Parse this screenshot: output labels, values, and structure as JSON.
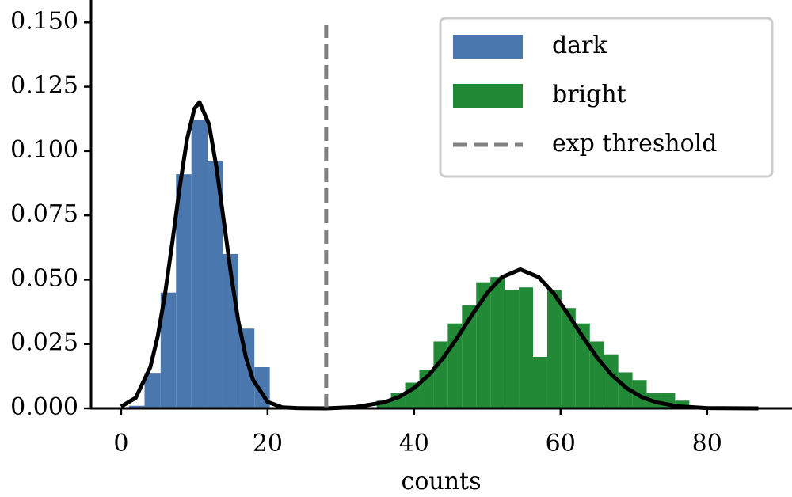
{
  "chart_data": {
    "type": "histogram",
    "xlabel": "counts",
    "xlim": [
      -4.1,
      91.6
    ],
    "ylim": [
      0,
      0.1587
    ],
    "xticks": [
      0,
      20,
      40,
      60,
      80
    ],
    "yticks": [
      {
        "value": 0,
        "label": "0.000"
      },
      {
        "value": 0.025,
        "label": "0.025"
      },
      {
        "value": 0.05,
        "label": "0.050"
      },
      {
        "value": 0.075,
        "label": "0.075"
      },
      {
        "value": 0.1,
        "label": "0.100"
      },
      {
        "value": 0.125,
        "label": "0.125"
      },
      {
        "value": 0.15,
        "label": "0.150"
      }
    ],
    "legend": "upper right",
    "series": [
      {
        "name": "dark",
        "color": "#4a78ae",
        "bins": [
          1.1,
          3.2,
          5.4,
          7.5,
          9.6,
          11.8,
          13.9,
          16.0,
          18.2,
          20.3
        ],
        "values": [
          0.001,
          0.0138,
          0.045,
          0.091,
          0.112,
          0.096,
          0.06,
          0.031,
          0.016
        ]
      },
      {
        "name": "bright",
        "color": "#228a37",
        "bins": [
          34.9,
          36.84,
          38.78,
          40.72,
          42.66,
          44.6,
          46.54,
          48.48,
          50.42,
          52.36,
          54.3,
          56.24,
          58.18,
          60.12,
          62.06,
          64.0,
          65.94,
          67.88,
          69.82,
          71.76,
          73.7,
          75.64,
          77.58
        ],
        "values": [
          0.003,
          0.006,
          0.01,
          0.015,
          0.026,
          0.033,
          0.04,
          0.049,
          0.051,
          0.046,
          0.047,
          0.02,
          0.046,
          0.039,
          0.033,
          0.026,
          0.021,
          0.014,
          0.011,
          0.006,
          0.006,
          0.003
        ]
      }
    ],
    "lines": [
      {
        "color": "#000000",
        "x": [
          0,
          2,
          4,
          5,
          6,
          7,
          8,
          9,
          10,
          10.7,
          12,
          13,
          14,
          15,
          16,
          17,
          18,
          20,
          22,
          24,
          28,
          32,
          36,
          38,
          40,
          42,
          44,
          46,
          48,
          50,
          52,
          54.5,
          57,
          59,
          61,
          63,
          65,
          67,
          69,
          71,
          73,
          76,
          80,
          87
        ],
        "values": [
          0.0007,
          0.0041,
          0.0161,
          0.028,
          0.0445,
          0.0646,
          0.086,
          0.1046,
          0.1164,
          0.119,
          0.1104,
          0.094,
          0.0733,
          0.0522,
          0.034,
          0.0203,
          0.0111,
          0.0025,
          0.0004,
          0.0001,
          0,
          0.0005,
          0.0024,
          0.0045,
          0.0079,
          0.0129,
          0.0197,
          0.0279,
          0.0367,
          0.0449,
          0.051,
          0.054,
          0.051,
          0.0449,
          0.0367,
          0.0279,
          0.0197,
          0.0129,
          0.0079,
          0.0045,
          0.0024,
          0.0008,
          0.0001,
          0
        ]
      }
    ],
    "threshold": {
      "name": "exp threshold",
      "x": 28,
      "ymax": 0.149,
      "color": "#808080"
    }
  }
}
